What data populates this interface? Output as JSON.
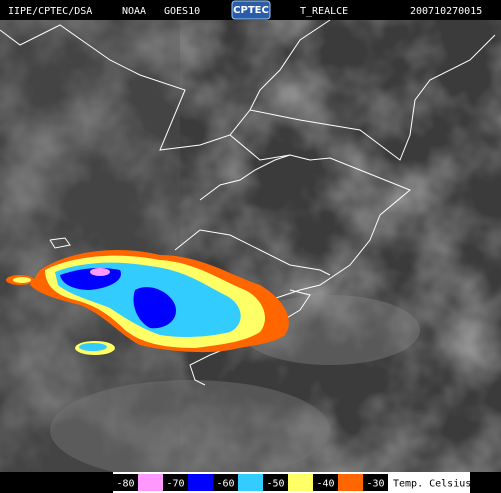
{
  "header": {
    "source": "IIPE/CPTEC/DSA",
    "agency": "NOAA",
    "satellite": "GOES10",
    "logo": "CPTEC",
    "product": "T_REALCE",
    "timestamp": "200710270015"
  },
  "legend": {
    "labels": [
      -80,
      -70,
      -60,
      -50,
      -40,
      -30
    ],
    "colors": [
      "#ff99ff",
      "#0000ff",
      "#33ccff",
      "#ffff66",
      "#ff6600"
    ],
    "unit": "Temp. Celsius"
  }
}
